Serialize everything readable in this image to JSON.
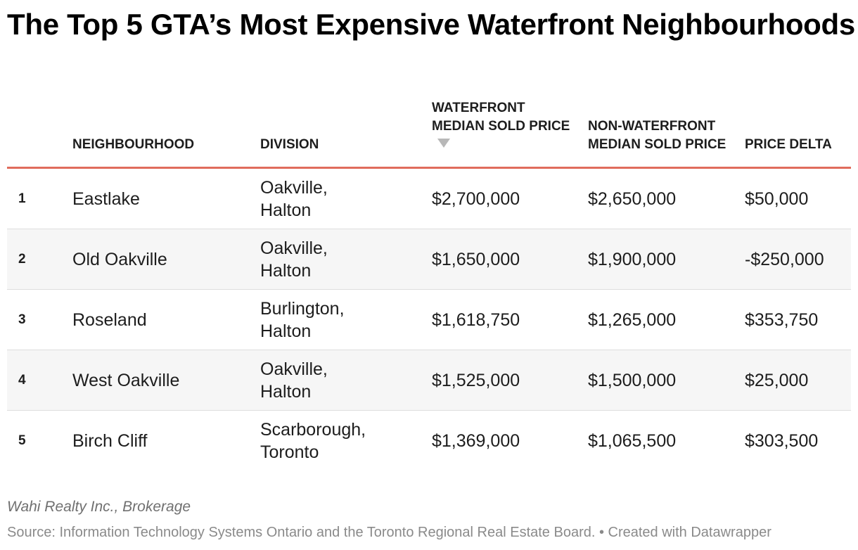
{
  "title": "The Top 5 GTA’s Most Expensive Waterfront Neighbourhoods",
  "columns": {
    "rank": "",
    "neighbourhood": "NEIGHBOURHOOD",
    "division": "DIVISION",
    "waterfront": "WATERFRONT MEDIAN SOLD PRICE",
    "nonwaterfront": "NON-WATERFRONT MEDIAN SOLD PRICE",
    "delta": "PRICE DELTA"
  },
  "sort": {
    "column": "waterfront",
    "direction": "descending",
    "icon": "sort-descending-triangle-icon",
    "color": "#b8b8b8"
  },
  "header_rule_color": "#e06c5c",
  "rows": [
    {
      "rank": "1",
      "neighbourhood": "Eastlake",
      "division_1": "Oakville,",
      "division_2": "Halton",
      "waterfront": "$2,700,000",
      "nonwaterfront": "$2,650,000",
      "delta": "$50,000"
    },
    {
      "rank": "2",
      "neighbourhood": "Old Oakville",
      "division_1": "Oakville,",
      "division_2": "Halton",
      "waterfront": "$1,650,000",
      "nonwaterfront": "$1,900,000",
      "delta": "-$250,000"
    },
    {
      "rank": "3",
      "neighbourhood": "Roseland",
      "division_1": "Burlington,",
      "division_2": "Halton",
      "waterfront": "$1,618,750",
      "nonwaterfront": "$1,265,000",
      "delta": "$353,750"
    },
    {
      "rank": "4",
      "neighbourhood": "West Oakville",
      "division_1": "Oakville,",
      "division_2": "Halton",
      "waterfront": "$1,525,000",
      "nonwaterfront": "$1,500,000",
      "delta": "$25,000"
    },
    {
      "rank": "5",
      "neighbourhood": "Birch Cliff",
      "division_1": "Scarborough,",
      "division_2": "Toronto",
      "waterfront": "$1,369,000",
      "nonwaterfront": "$1,065,500",
      "delta": "$303,500"
    }
  ],
  "notes": "Wahi Realty Inc., Brokerage",
  "source": "Source: Information Technology Systems Ontario and the Toronto Regional Real Estate Board. • Created with Datawrapper",
  "chart_data": {
    "type": "table",
    "title": "The Top 5 GTA’s Most Expensive Waterfront Neighbourhoods",
    "columns": [
      "",
      "NEIGHBOURHOOD",
      "DIVISION",
      "WATERFRONT MEDIAN SOLD PRICE",
      "NON-WATERFRONT MEDIAN SOLD PRICE",
      "PRICE DELTA"
    ],
    "rows": [
      [
        "1",
        "Eastlake",
        "Oakville, Halton",
        2700000,
        2650000,
        50000
      ],
      [
        "2",
        "Old Oakville",
        "Oakville, Halton",
        1650000,
        1900000,
        -250000
      ],
      [
        "3",
        "Roseland",
        "Burlington, Halton",
        1618750,
        1265000,
        353750
      ],
      [
        "4",
        "West Oakville",
        "Oakville, Halton",
        1525000,
        1500000,
        25000
      ],
      [
        "5",
        "Birch Cliff",
        "Scarborough, Toronto",
        1369000,
        1065500,
        303500
      ]
    ]
  }
}
